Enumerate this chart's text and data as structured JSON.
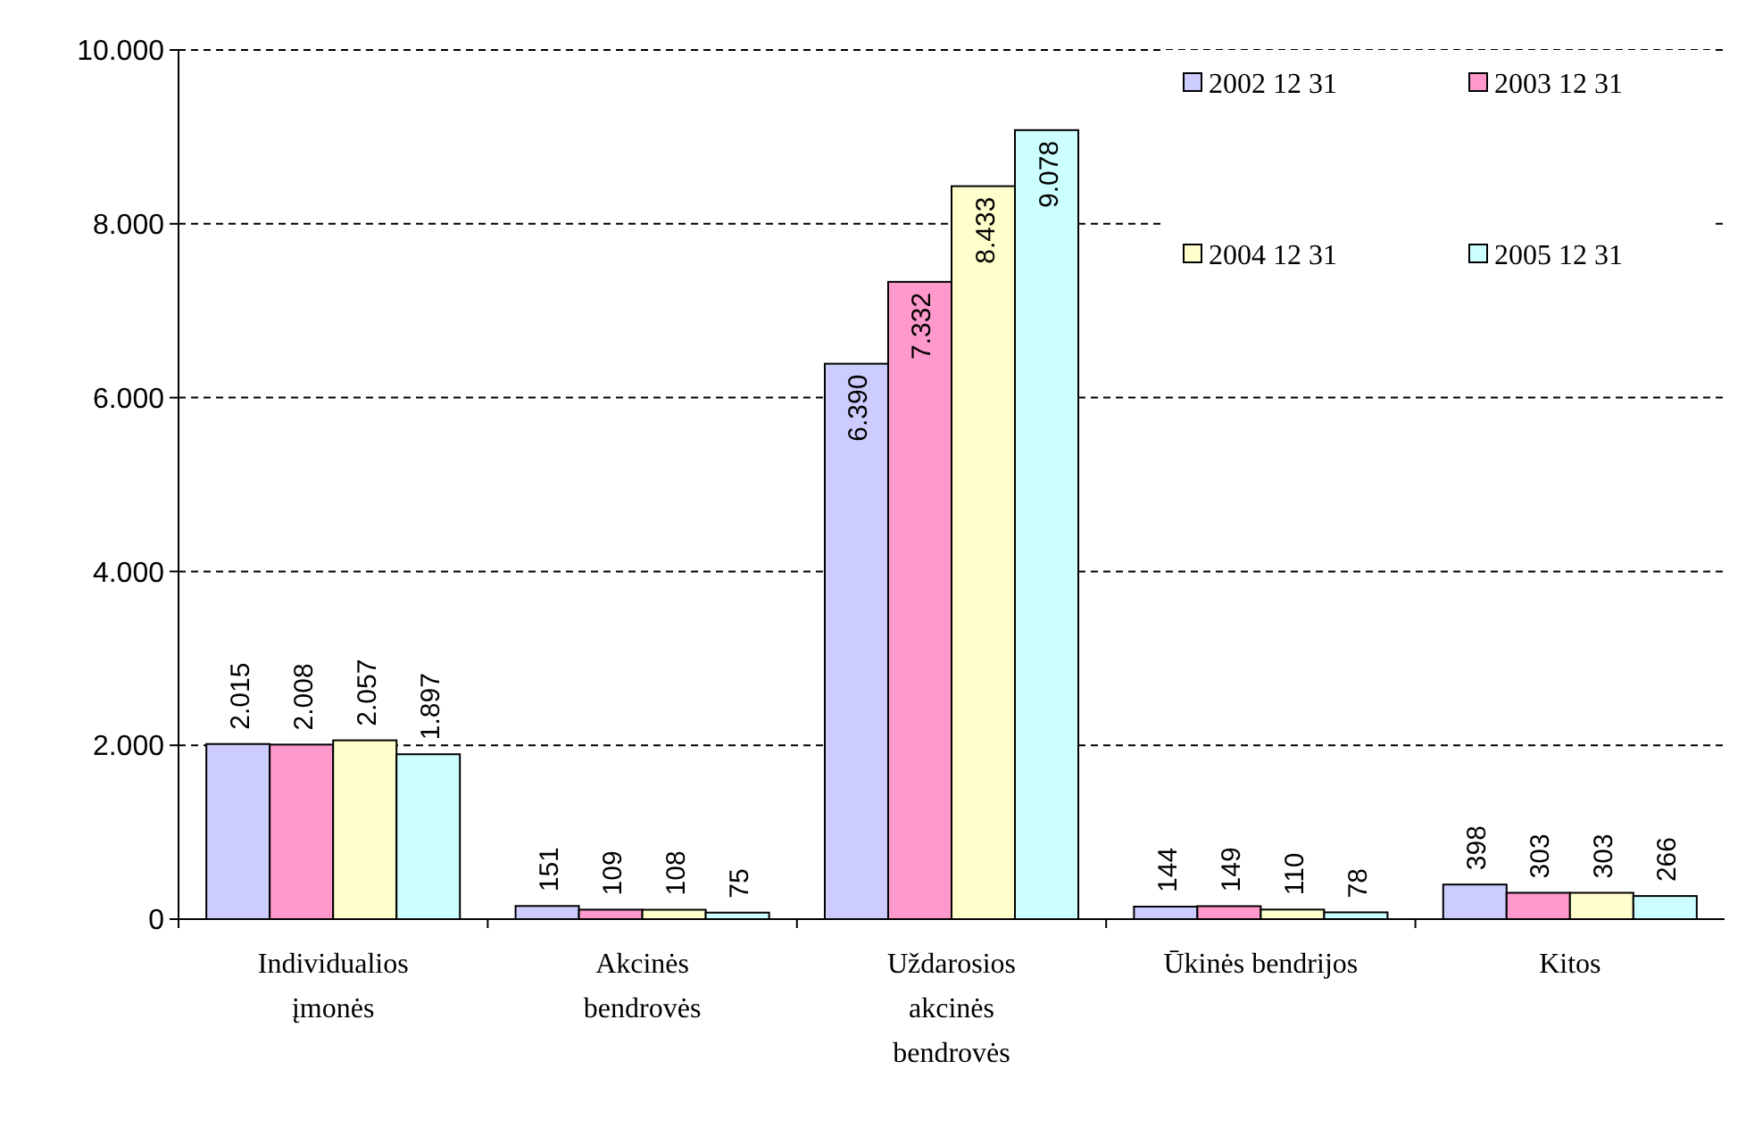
{
  "chart_data": {
    "type": "bar",
    "categories": [
      "Individualios įmonės",
      "Akcinės bendrovės",
      "Uždarosios akcinės bendrovės",
      "Ūkinės bendrijos",
      "Kitos"
    ],
    "series": [
      {
        "name": "2002 12 31",
        "color": "#ccccff",
        "values": [
          2015,
          151,
          6390,
          144,
          398
        ],
        "value_labels": [
          "2.015",
          "151",
          "6.390",
          "144",
          "398"
        ]
      },
      {
        "name": "2003 12 31",
        "color": "#ff99cc",
        "values": [
          2008,
          109,
          7332,
          149,
          303
        ],
        "value_labels": [
          "2.008",
          "109",
          "7.332",
          "149",
          "303"
        ]
      },
      {
        "name": "2004 12 31",
        "color": "#ffffcc",
        "values": [
          2057,
          108,
          8433,
          110,
          303
        ],
        "value_labels": [
          "2.057",
          "108",
          "8.433",
          "110",
          "303"
        ]
      },
      {
        "name": "2005 12 31",
        "color": "#ccffff",
        "values": [
          1897,
          75,
          9078,
          78,
          266
        ],
        "value_labels": [
          "1.897",
          "75",
          "9.078",
          "78",
          "266"
        ]
      }
    ],
    "ylim": [
      0,
      10000
    ],
    "yticks": [
      {
        "value": 0,
        "label": "0"
      },
      {
        "value": 2000,
        "label": "2.000"
      },
      {
        "value": 4000,
        "label": "4.000"
      },
      {
        "value": 6000,
        "label": "6.000"
      },
      {
        "value": 8000,
        "label": "8.000"
      },
      {
        "value": 10000,
        "label": "10.000"
      }
    ],
    "grid": "y",
    "legend": "top right"
  }
}
